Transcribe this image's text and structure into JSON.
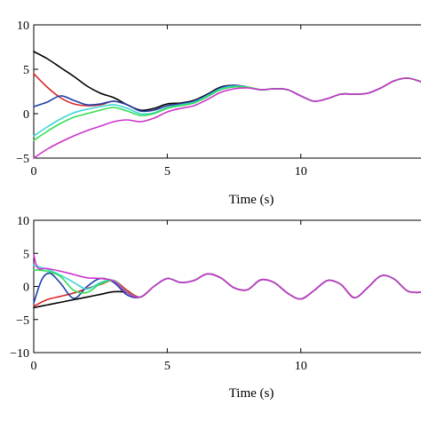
{
  "chart_data": [
    {
      "type": "line",
      "xlabel": "Time (s)",
      "ylabel": "",
      "xlim": [
        0,
        14.5
      ],
      "ylim": [
        -5,
        10
      ],
      "xticks": [
        0,
        5,
        10
      ],
      "yticks": [
        -5,
        0,
        5,
        10
      ],
      "grid": false,
      "series": [
        {
          "color": "#000000",
          "x": [
            0,
            0.5,
            1,
            1.5,
            2,
            2.5,
            3,
            3.5,
            4,
            4.5,
            5,
            5.5,
            6,
            6.5,
            7,
            7.5,
            8,
            8.5,
            9,
            9.5,
            10,
            10.5,
            11,
            11.5,
            12,
            12.5,
            13,
            13.5,
            14,
            14.5
          ],
          "y": [
            7,
            6.2,
            5.2,
            4.2,
            3.1,
            2.3,
            1.8,
            1.0,
            0.4,
            0.6,
            1.1,
            1.2,
            1.5,
            2.2,
            3.0,
            3.2,
            3.0,
            2.7,
            2.8,
            2.7,
            2.0,
            1.4,
            1.7,
            2.2,
            2.2,
            2.3,
            2.9,
            3.7,
            4.0,
            3.6
          ]
        },
        {
          "color": "#d62728",
          "x": [
            0,
            0.5,
            1,
            1.5,
            2,
            2.5,
            3,
            3.5,
            4,
            4.5,
            5,
            5.5,
            6,
            6.5,
            7,
            7.5,
            8,
            8.5,
            9,
            9.5,
            10,
            10.5,
            11,
            11.5,
            12,
            12.5,
            13,
            13.5,
            14,
            14.5
          ],
          "y": [
            4.5,
            3.0,
            1.8,
            1.1,
            0.9,
            1.0,
            1.4,
            1.0,
            0.3,
            0.4,
            0.9,
            1.1,
            1.4,
            2.1,
            2.9,
            3.2,
            3.0,
            2.7,
            2.8,
            2.7,
            2.0,
            1.4,
            1.7,
            2.2,
            2.2,
            2.3,
            2.9,
            3.7,
            4.0,
            3.6
          ]
        },
        {
          "color": "#1f3fa8",
          "x": [
            0,
            0.5,
            1,
            1.5,
            2,
            2.5,
            3,
            3.5,
            4,
            4.5,
            5,
            5.5,
            6,
            6.5,
            7,
            7.5,
            8,
            8.5,
            9,
            9.5,
            10,
            10.5,
            11,
            11.5,
            12,
            12.5,
            13,
            13.5,
            14,
            14.5
          ],
          "y": [
            0.8,
            1.3,
            2.0,
            1.5,
            1.0,
            1.1,
            1.4,
            1.0,
            0.3,
            0.4,
            0.9,
            1.1,
            1.4,
            2.1,
            2.9,
            3.2,
            3.0,
            2.7,
            2.8,
            2.7,
            2.0,
            1.4,
            1.7,
            2.2,
            2.2,
            2.3,
            2.9,
            3.7,
            4.0,
            3.6
          ]
        },
        {
          "color": "#3cd6d6",
          "x": [
            0,
            0.5,
            1,
            1.5,
            2,
            2.5,
            3,
            3.5,
            4,
            4.5,
            5,
            5.5,
            6,
            6.5,
            7,
            7.5,
            8,
            8.5,
            9,
            9.5,
            10,
            10.5,
            11,
            11.5,
            12,
            12.5,
            13,
            13.5,
            14,
            14.5
          ],
          "y": [
            -2.5,
            -1.5,
            -0.6,
            0.1,
            0.5,
            0.8,
            1.0,
            0.6,
            0.0,
            0.1,
            0.7,
            1.0,
            1.3,
            2.0,
            2.8,
            3.1,
            3.0,
            2.7,
            2.8,
            2.7,
            2.0,
            1.4,
            1.7,
            2.2,
            2.2,
            2.3,
            2.9,
            3.7,
            4.0,
            3.6
          ]
        },
        {
          "color": "#33dd55",
          "x": [
            0,
            0.5,
            1,
            1.5,
            2,
            2.5,
            3,
            3.5,
            4,
            4.5,
            5,
            5.5,
            6,
            6.5,
            7,
            7.5,
            8,
            8.5,
            9,
            9.5,
            10,
            10.5,
            11,
            11.5,
            12,
            12.5,
            13,
            13.5,
            14,
            14.5
          ],
          "y": [
            -3.0,
            -2.0,
            -1.1,
            -0.4,
            0.0,
            0.4,
            0.7,
            0.3,
            -0.2,
            0.0,
            0.6,
            0.9,
            1.2,
            1.9,
            2.7,
            3.0,
            3.0,
            2.7,
            2.8,
            2.7,
            2.0,
            1.4,
            1.7,
            2.2,
            2.2,
            2.3,
            2.9,
            3.7,
            4.0,
            3.6
          ]
        },
        {
          "color": "#cc33cc",
          "x": [
            0,
            0.5,
            1,
            1.5,
            2,
            2.5,
            3,
            3.5,
            4,
            4.5,
            5,
            5.5,
            6,
            6.5,
            7,
            7.5,
            8,
            8.5,
            9,
            9.5,
            10,
            10.5,
            11,
            11.5,
            12,
            12.5,
            13,
            13.5,
            14,
            14.5
          ],
          "y": [
            -5,
            -4.0,
            -3.2,
            -2.5,
            -1.9,
            -1.4,
            -0.9,
            -0.7,
            -0.9,
            -0.5,
            0.2,
            0.6,
            0.9,
            1.6,
            2.4,
            2.8,
            2.9,
            2.7,
            2.8,
            2.7,
            2.0,
            1.4,
            1.7,
            2.2,
            2.2,
            2.3,
            2.9,
            3.7,
            4.0,
            3.6
          ]
        }
      ]
    },
    {
      "type": "line",
      "xlabel": "Time (s)",
      "ylabel": "",
      "xlim": [
        0,
        14.5
      ],
      "ylim": [
        -10,
        10
      ],
      "xticks": [
        0,
        5,
        10
      ],
      "yticks": [
        -10,
        -5,
        0,
        5,
        10
      ],
      "grid": false,
      "series": [
        {
          "color": "#000000",
          "x": [
            0,
            0.5,
            1,
            1.5,
            2,
            2.5,
            3,
            3.5,
            4,
            4.5,
            5,
            5.5,
            6,
            6.5,
            7,
            7.5,
            8,
            8.5,
            9,
            9.5,
            10,
            10.5,
            11,
            11.5,
            12,
            12.5,
            13,
            13.5,
            14,
            14.5
          ],
          "y": [
            -3.2,
            -2.8,
            -2.4,
            -2.0,
            -1.6,
            -1.2,
            -0.8,
            -0.9,
            -1.6,
            0.0,
            1.2,
            0.6,
            0.9,
            1.9,
            1.3,
            -0.2,
            -0.5,
            1.0,
            0.6,
            -1.0,
            -1.9,
            -0.6,
            0.9,
            0.3,
            -1.7,
            -0.2,
            1.6,
            1.1,
            -0.7,
            -0.9
          ]
        },
        {
          "color": "#d62728",
          "x": [
            0,
            0.5,
            1,
            1.5,
            2,
            2.5,
            3,
            3.5,
            4,
            4.5,
            5,
            5.5,
            6,
            6.5,
            7,
            7.5,
            8,
            8.5,
            9,
            9.5,
            10,
            10.5,
            11,
            11.5,
            12,
            12.5,
            13,
            13.5,
            14,
            14.5
          ],
          "y": [
            -3.0,
            -2.0,
            -1.5,
            -1.0,
            -0.3,
            0.3,
            0.9,
            -0.6,
            -1.6,
            0.0,
            1.2,
            0.6,
            0.9,
            1.9,
            1.3,
            -0.2,
            -0.5,
            1.0,
            0.6,
            -1.0,
            -1.9,
            -0.6,
            0.9,
            0.3,
            -1.7,
            -0.2,
            1.6,
            1.1,
            -0.7,
            -0.9
          ]
        },
        {
          "color": "#1f3fa8",
          "x": [
            0,
            0.3,
            0.6,
            1,
            1.5,
            2,
            2.5,
            3,
            3.5,
            4,
            4.5,
            5,
            5.5,
            6,
            6.5,
            7,
            7.5,
            8,
            8.5,
            9,
            9.5,
            10,
            10.5,
            11,
            11.5,
            12,
            12.5,
            13,
            13.5,
            14,
            14.5
          ],
          "y": [
            -2.5,
            1.0,
            2.0,
            0.5,
            -1.8,
            0.0,
            1.2,
            0.6,
            -1.3,
            -1.6,
            0.0,
            1.2,
            0.6,
            0.9,
            1.9,
            1.3,
            -0.2,
            -0.5,
            1.0,
            0.6,
            -1.0,
            -1.9,
            -0.6,
            0.9,
            0.3,
            -1.7,
            -0.2,
            1.6,
            1.1,
            -0.7,
            -0.9
          ]
        },
        {
          "color": "#3cd6d6",
          "x": [
            0,
            0.5,
            1,
            1.5,
            2,
            2.5,
            3,
            3.5,
            4,
            4.5,
            5,
            5.5,
            6,
            6.5,
            7,
            7.5,
            8,
            8.5,
            9,
            9.5,
            10,
            10.5,
            11,
            11.5,
            12,
            12.5,
            13,
            13.5,
            14,
            14.5
          ],
          "y": [
            3.2,
            2.6,
            1.7,
            0.6,
            -0.4,
            0.6,
            0.9,
            -0.9,
            -1.6,
            0.0,
            1.2,
            0.6,
            0.9,
            1.9,
            1.3,
            -0.2,
            -0.5,
            1.0,
            0.6,
            -1.0,
            -1.9,
            -0.6,
            0.9,
            0.3,
            -1.7,
            -0.2,
            1.6,
            1.1,
            -0.7,
            -0.9
          ]
        },
        {
          "color": "#33dd55",
          "x": [
            0,
            0.5,
            1,
            1.5,
            2,
            2.5,
            3,
            3.5,
            4,
            4.5,
            5,
            5.5,
            6,
            6.5,
            7,
            7.5,
            8,
            8.5,
            9,
            9.5,
            10,
            10.5,
            11,
            11.5,
            12,
            12.5,
            13,
            13.5,
            14,
            14.5
          ],
          "y": [
            2.5,
            2.3,
            1.5,
            -0.6,
            -0.9,
            0.4,
            0.8,
            -0.9,
            -1.6,
            0.0,
            1.2,
            0.6,
            0.9,
            1.9,
            1.3,
            -0.2,
            -0.5,
            1.0,
            0.6,
            -1.0,
            -1.9,
            -0.6,
            0.9,
            0.3,
            -1.7,
            -0.2,
            1.6,
            1.1,
            -0.7,
            -0.9
          ]
        },
        {
          "color": "#cc33cc",
          "x": [
            0,
            0.15,
            0.5,
            1,
            1.5,
            2,
            2.5,
            3,
            3.5,
            4,
            4.5,
            5,
            5.5,
            6,
            6.5,
            7,
            7.5,
            8,
            8.5,
            9,
            9.5,
            10,
            10.5,
            11,
            11.5,
            12,
            12.5,
            13,
            13.5,
            14,
            14.5
          ],
          "y": [
            4.8,
            2.8,
            2.7,
            2.3,
            1.8,
            1.3,
            1.2,
            0.8,
            -1.0,
            -1.6,
            0.0,
            1.2,
            0.6,
            0.9,
            1.9,
            1.3,
            -0.2,
            -0.5,
            1.0,
            0.6,
            -1.0,
            -1.9,
            -0.6,
            0.9,
            0.3,
            -1.7,
            -0.2,
            1.6,
            1.1,
            -0.7,
            -0.9
          ]
        }
      ]
    }
  ]
}
